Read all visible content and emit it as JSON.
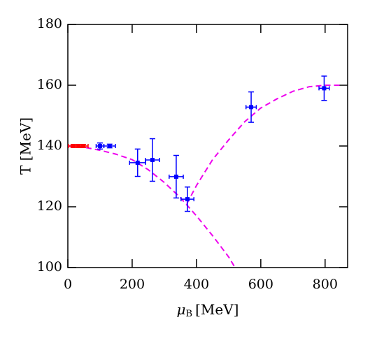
{
  "chart_data": {
    "type": "scatter",
    "xlabel": {
      "symbol": "μ",
      "subscript": "B",
      "unit": "[MeV]"
    },
    "ylabel": "T [MeV]",
    "xlim": [
      0,
      870
    ],
    "ylim": [
      100,
      180
    ],
    "xticks": [
      0,
      200,
      400,
      600,
      800
    ],
    "yticks": [
      100,
      120,
      140,
      160,
      180
    ],
    "series": [
      {
        "color": "#ff0000",
        "x": [
          17,
          33,
          48
        ],
        "values": [
          140,
          140,
          140
        ],
        "xerr": [
          15,
          15,
          15
        ],
        "yerr": [
          0.5,
          0.5,
          0.5
        ]
      },
      {
        "color": "#0000ff",
        "x": [
          100,
          130,
          217,
          263,
          337,
          372,
          570,
          797
        ],
        "values": [
          140,
          140,
          134.5,
          135.4,
          129.9,
          122.5,
          152.8,
          159
        ],
        "xerr": [
          12,
          18,
          25,
          22,
          22,
          20,
          16,
          16
        ],
        "yerr": [
          1,
          0.6,
          4.5,
          7,
          7,
          4,
          5,
          4
        ]
      }
    ],
    "curves": [
      {
        "color": "#ee00ee",
        "x": [
          0,
          50,
          100,
          150,
          200,
          250,
          300,
          350,
          400,
          450,
          500,
          520
        ],
        "values": [
          140,
          139.6,
          138.6,
          137.3,
          135.5,
          132.2,
          128,
          123,
          117,
          110.5,
          103.5,
          100
        ]
      },
      {
        "color": "#ee00ee",
        "x": [
          370,
          400,
          450,
          500,
          550,
          600,
          650,
          700,
          750,
          800,
          850
        ],
        "values": [
          121,
          127,
          135.5,
          142,
          148,
          152.5,
          155.5,
          158,
          159.5,
          160,
          160
        ]
      }
    ]
  }
}
